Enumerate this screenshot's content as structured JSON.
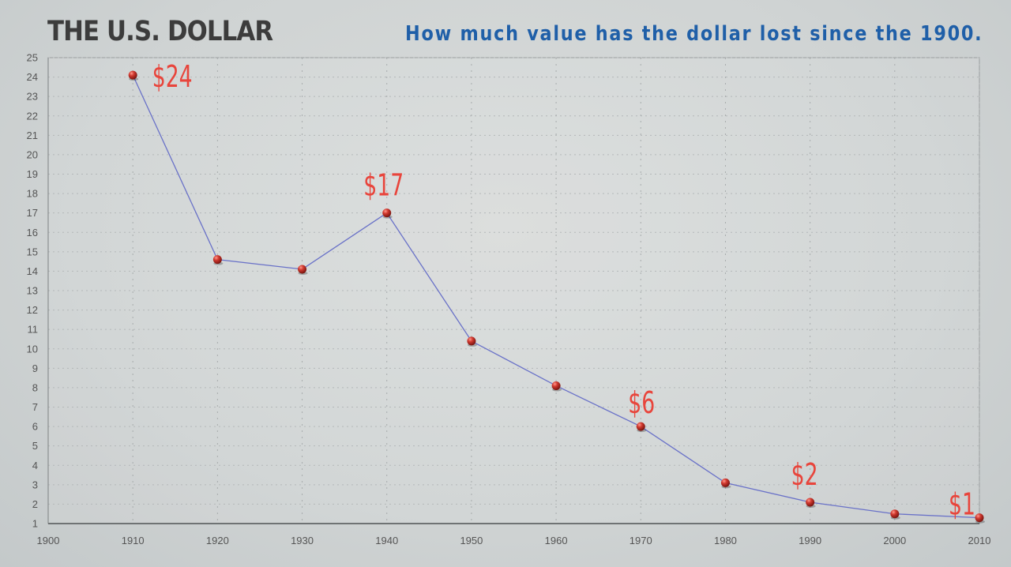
{
  "header": {
    "title": "THE U.S. DOLLAR",
    "subtitle": "How much value has the dollar lost since the 1900."
  },
  "colors": {
    "line": "#6a72c8",
    "point": "#c0302c",
    "label": "#e8453c",
    "title": "#3c3c3c",
    "subtitle": "#1f5fa8"
  },
  "chart_data": {
    "type": "line",
    "title": "THE U.S. DOLLAR",
    "subtitle": "How much value has the dollar lost since the 1900.",
    "xlabel": "",
    "ylabel": "",
    "xlim": [
      1900,
      2010
    ],
    "ylim": [
      1,
      25
    ],
    "grid": true,
    "x_ticks": [
      1900,
      1910,
      1920,
      1930,
      1940,
      1950,
      1960,
      1970,
      1980,
      1990,
      2000,
      2010
    ],
    "y_ticks": [
      1,
      2,
      3,
      4,
      5,
      6,
      7,
      8,
      9,
      10,
      11,
      12,
      13,
      14,
      15,
      16,
      17,
      18,
      19,
      20,
      21,
      22,
      23,
      24,
      25
    ],
    "series": [
      {
        "x": [
          1910,
          1920,
          1930,
          1940,
          1950,
          1960,
          1970,
          1980,
          1990,
          2000,
          2010
        ],
        "values": [
          24.1,
          14.6,
          14.1,
          17.0,
          10.4,
          8.1,
          6.0,
          3.1,
          2.1,
          1.5,
          1.3
        ]
      }
    ],
    "annotations": [
      {
        "x": 1910,
        "y": 24.1,
        "text": "$24"
      },
      {
        "x": 1940,
        "y": 17.0,
        "text": "$17"
      },
      {
        "x": 1970,
        "y": 6.0,
        "text": "$6"
      },
      {
        "x": 1990,
        "y": 2.1,
        "text": "$2"
      },
      {
        "x": 2010,
        "y": 1.3,
        "text": "$1"
      }
    ]
  }
}
